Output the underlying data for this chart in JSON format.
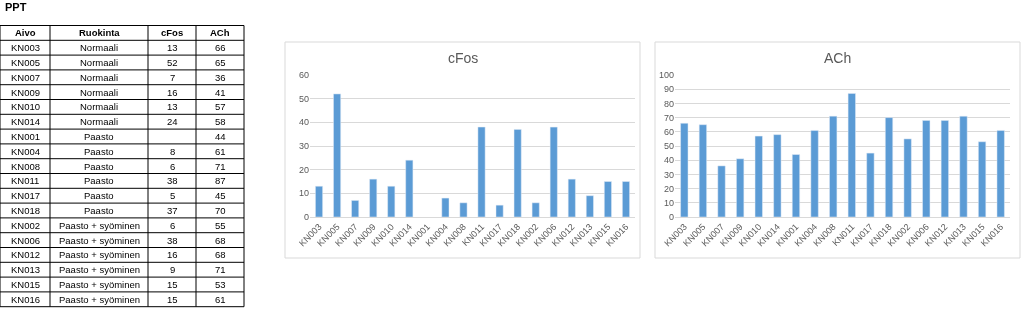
{
  "chart_data": [
    {
      "type": "other",
      "title": "PPT",
      "categories": [
        "Aivo",
        "Ruokinta",
        "cFos",
        "ACh"
      ],
      "annotations": [
        "KN003",
        "Normaali",
        "13",
        "66",
        "KN005",
        "Normaali",
        "52",
        "65",
        "KN007",
        "Normaali",
        "7",
        "36",
        "KN009",
        "Normaali",
        "16",
        "41",
        "KN010",
        "Normaali",
        "13",
        "57",
        "KN014",
        "Normaali",
        "24",
        "58",
        "KN001",
        "Paasto",
        null,
        "44",
        "KN004",
        "Paasto",
        "8",
        "61",
        "KN008",
        "Paasto",
        "6",
        "71",
        "KN011",
        "Paasto",
        "38",
        "87",
        "KN017",
        "Paasto",
        "5",
        "45",
        "KN018",
        "Paasto",
        "37",
        "70",
        "KN002",
        "Paasto + syöminen",
        "6",
        "55",
        "KN006",
        "Paasto + syöminen",
        "38",
        "68",
        "KN012",
        "Paasto + syöminen",
        "16",
        "68",
        "KN013",
        "Paasto + syöminen",
        "9",
        "71",
        "KN015",
        "Paasto + syöminen",
        "15",
        "53",
        "KN016",
        "Paasto + syöminen",
        "15",
        "61"
      ]
    },
    {
      "type": "bar",
      "title": "cFos",
      "categories": [
        "KN003",
        "KN005",
        "KN007",
        "KN009",
        "KN010",
        "KN014",
        "KN001",
        "KN004",
        "KN008",
        "KN011",
        "KN017",
        "KN018",
        "KN002",
        "KN006",
        "KN012",
        "KN013",
        "KN015",
        "KN016"
      ],
      "values": [
        13,
        52,
        7,
        16,
        13,
        24,
        null,
        8,
        6,
        38,
        5,
        37,
        6,
        38,
        16,
        9,
        15,
        15
      ],
      "color": "#5b9bd5",
      "ylim": [
        0,
        60
      ],
      "yticks": [
        0,
        10,
        20,
        30,
        40,
        50,
        60
      ],
      "grid": "y"
    },
    {
      "type": "bar",
      "title": "ACh",
      "categories": [
        "KN003",
        "KN005",
        "KN007",
        "KN009",
        "KN010",
        "KN014",
        "KN001",
        "KN004",
        "KN008",
        "KN011",
        "KN017",
        "KN018",
        "KN002",
        "KN006",
        "KN012",
        "KN013",
        "KN015",
        "KN016"
      ],
      "values": [
        66,
        65,
        36,
        41,
        57,
        58,
        44,
        61,
        71,
        87,
        45,
        70,
        55,
        68,
        68,
        71,
        53,
        61
      ],
      "color": "#5b9bd5",
      "ylim": [
        0,
        100
      ],
      "yticks": [
        0,
        10,
        20,
        30,
        40,
        50,
        60,
        70,
        80,
        90,
        100
      ],
      "grid": "y"
    }
  ]
}
